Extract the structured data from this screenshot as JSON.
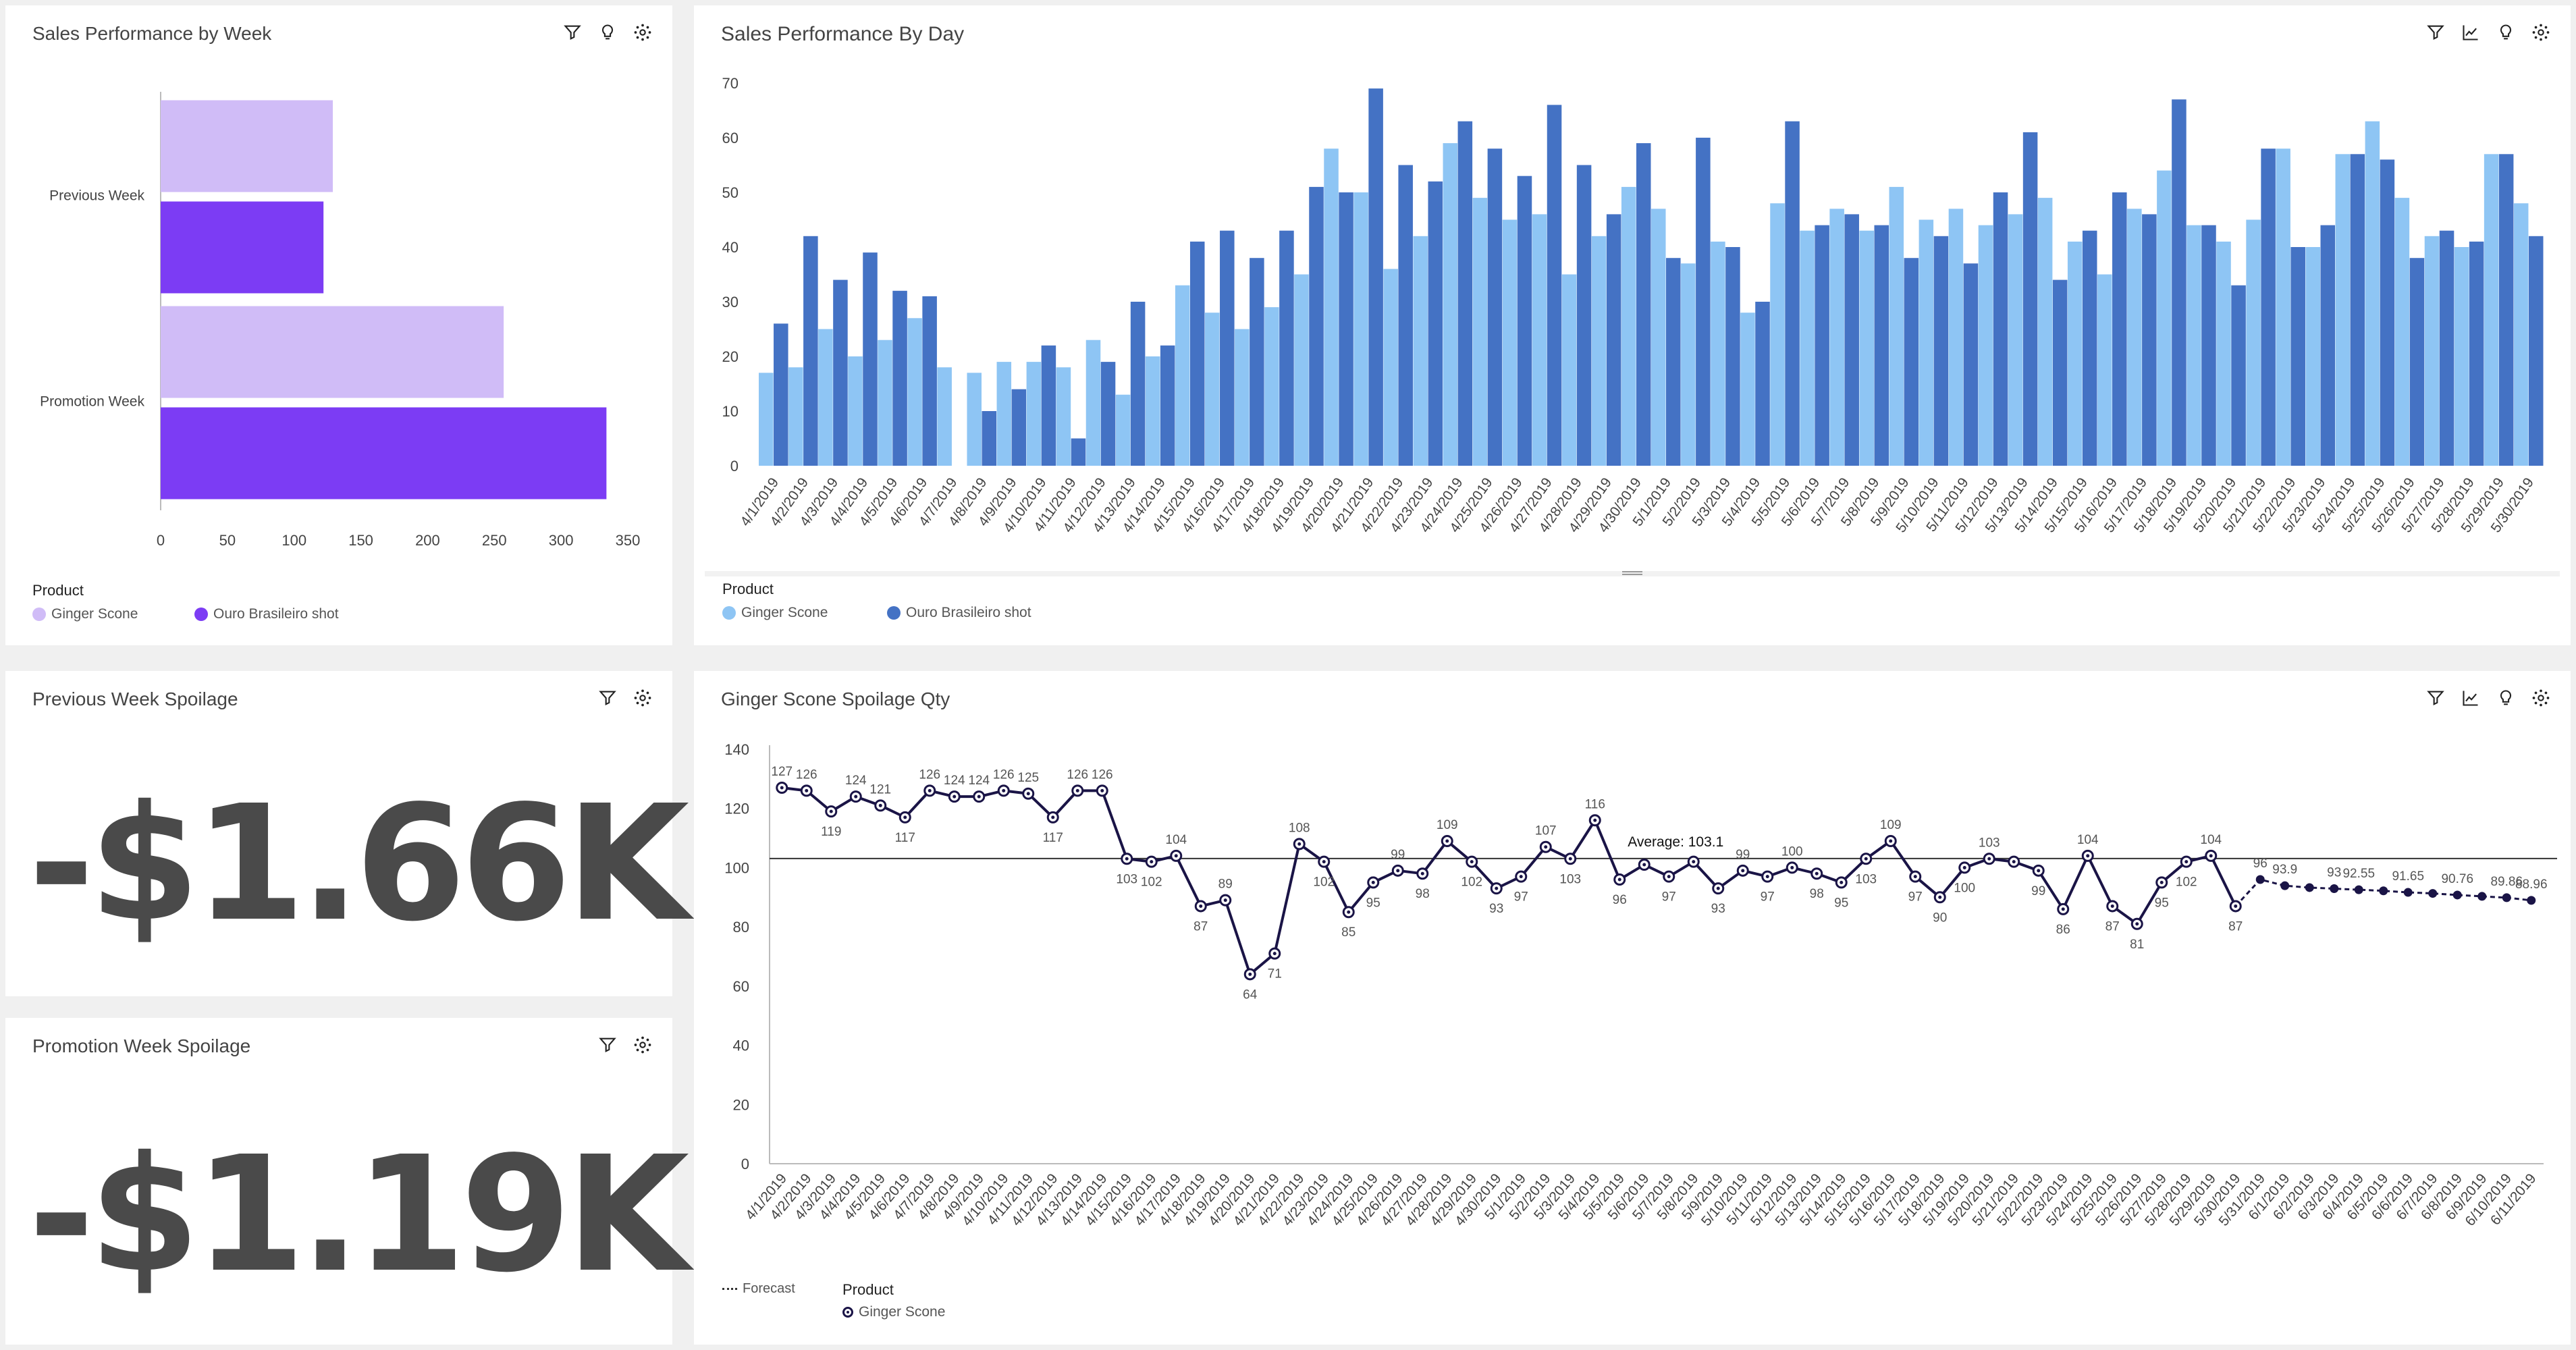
{
  "panels": {
    "week": {
      "title": "Sales Performance by Week",
      "legend_title": "Product",
      "legend": [
        "Ginger Scone",
        "Ouro Brasileiro shot"
      ]
    },
    "day": {
      "title": "Sales Performance By Day",
      "legend_title": "Product",
      "legend": [
        "Ginger Scone",
        "Ouro Brasileiro shot"
      ]
    },
    "prev": {
      "title": "Previous Week Spoilage",
      "value": "-$1.66K"
    },
    "promo": {
      "title": "Promotion Week Spoilage",
      "value": "-$1.19K"
    },
    "spoil": {
      "title": "Ginger Scone Spoilage Qty",
      "forecast_label": "Forecast",
      "legend_title": "Product",
      "legend": [
        "Ginger Scone"
      ]
    }
  },
  "colors": {
    "ginger_bar_week": "#d0bcf7",
    "ouro_bar_week": "#7c3cf4",
    "ginger_bar_day": "#8ec5f4",
    "ouro_bar_day": "#4472c4",
    "line": "#1a1446"
  },
  "icons": [
    "filter-icon",
    "lightbulb-icon",
    "settings-icon",
    "trend-icon"
  ],
  "chart_data": [
    {
      "type": "bar",
      "orientation": "horizontal",
      "title": "Sales Performance by Week",
      "categories": [
        "Previous Week",
        "Promotion Week"
      ],
      "series": [
        {
          "name": "Ginger Scone",
          "values": [
            129,
            257
          ]
        },
        {
          "name": "Ouro Brasileiro shot",
          "values": [
            122,
            334
          ]
        }
      ],
      "xlim": [
        0,
        350
      ],
      "xticks": [
        0,
        50,
        100,
        150,
        200,
        250,
        300,
        350
      ],
      "legend_title": "Product",
      "legend_position": "bottom-left"
    },
    {
      "type": "bar",
      "title": "Sales Performance By Day",
      "x": [
        "4/1/2019",
        "4/2/2019",
        "4/3/2019",
        "4/4/2019",
        "4/5/2019",
        "4/6/2019",
        "4/7/2019",
        "4/8/2019",
        "4/9/2019",
        "4/10/2019",
        "4/11/2019",
        "4/12/2019",
        "4/13/2019",
        "4/14/2019",
        "4/15/2019",
        "4/16/2019",
        "4/17/2019",
        "4/18/2019",
        "4/19/2019",
        "4/20/2019",
        "4/21/2019",
        "4/22/2019",
        "4/23/2019",
        "4/24/2019",
        "4/25/2019",
        "4/26/2019",
        "4/27/2019",
        "4/28/2019",
        "4/29/2019",
        "4/30/2019",
        "5/1/2019",
        "5/2/2019",
        "5/3/2019",
        "5/4/2019",
        "5/5/2019",
        "5/6/2019",
        "5/7/2019",
        "5/8/2019",
        "5/9/2019",
        "5/10/2019",
        "5/11/2019",
        "5/12/2019",
        "5/13/2019",
        "5/14/2019",
        "5/15/2019",
        "5/16/2019",
        "5/17/2019",
        "5/18/2019",
        "5/19/2019",
        "5/20/2019",
        "5/21/2019",
        "5/22/2019",
        "5/23/2019",
        "5/24/2019",
        "5/25/2019",
        "5/26/2019",
        "5/27/2019",
        "5/28/2019",
        "5/29/2019",
        "5/30/2019"
      ],
      "series": [
        {
          "name": "Ginger Scone",
          "values": [
            17,
            18,
            25,
            20,
            23,
            27,
            18,
            17,
            19,
            19,
            18,
            23,
            13,
            20,
            33,
            28,
            25,
            29,
            35,
            58,
            50,
            36,
            42,
            59,
            49,
            45,
            46,
            35,
            42,
            51,
            47,
            37,
            41,
            28,
            48,
            43,
            47,
            43,
            51,
            45,
            47,
            44,
            46,
            49,
            41,
            35,
            47,
            54,
            44,
            41,
            45,
            58,
            40,
            57,
            63,
            49,
            42,
            40,
            57,
            48
          ]
        },
        {
          "name": "Ouro Brasileiro shot",
          "values": [
            26,
            42,
            34,
            39,
            32,
            31,
            0,
            10,
            14,
            22,
            5,
            19,
            30,
            22,
            41,
            43,
            38,
            43,
            51,
            50,
            69,
            55,
            52,
            63,
            58,
            53,
            66,
            55,
            46,
            59,
            38,
            60,
            40,
            30,
            63,
            44,
            46,
            44,
            38,
            42,
            37,
            50,
            61,
            34,
            43,
            50,
            46,
            67,
            44,
            33,
            58,
            40,
            44,
            57,
            56,
            38,
            43,
            41,
            57,
            42
          ]
        }
      ],
      "ylim": [
        0,
        70
      ],
      "yticks": [
        0,
        10,
        20,
        30,
        40,
        50,
        60,
        70
      ],
      "legend_title": "Product",
      "legend_position": "bottom-left"
    },
    {
      "type": "line",
      "title": "Ginger Scone Spoilage Qty",
      "x": [
        "4/1/2019",
        "4/2/2019",
        "4/3/2019",
        "4/4/2019",
        "4/5/2019",
        "4/6/2019",
        "4/7/2019",
        "4/8/2019",
        "4/9/2019",
        "4/10/2019",
        "4/11/2019",
        "4/12/2019",
        "4/13/2019",
        "4/14/2019",
        "4/15/2019",
        "4/16/2019",
        "4/17/2019",
        "4/18/2019",
        "4/19/2019",
        "4/20/2019",
        "4/21/2019",
        "4/22/2019",
        "4/23/2019",
        "4/24/2019",
        "4/25/2019",
        "4/26/2019",
        "4/27/2019",
        "4/28/2019",
        "4/29/2019",
        "4/30/2019",
        "5/1/2019",
        "5/2/2019",
        "5/3/2019",
        "5/4/2019",
        "5/5/2019",
        "5/6/2019",
        "5/7/2019",
        "5/8/2019",
        "5/9/2019",
        "5/10/2019",
        "5/11/2019",
        "5/12/2019",
        "5/13/2019",
        "5/14/2019",
        "5/15/2019",
        "5/16/2019",
        "5/17/2019",
        "5/18/2019",
        "5/19/2019",
        "5/20/2019",
        "5/21/2019",
        "5/22/2019",
        "5/23/2019",
        "5/24/2019",
        "5/25/2019",
        "5/26/2019",
        "5/27/2019",
        "5/28/2019",
        "5/29/2019",
        "5/30/2019",
        "5/31/2019",
        "6/1/2019",
        "6/2/2019",
        "6/3/2019",
        "6/4/2019",
        "6/5/2019",
        "6/6/2019",
        "6/7/2019",
        "6/8/2019",
        "6/9/2019",
        "6/10/2019",
        "6/11/2019"
      ],
      "series": [
        {
          "name": "Ginger Scone",
          "values": [
            127,
            126,
            119,
            124,
            121,
            117,
            126,
            124,
            124,
            126,
            125,
            117,
            126,
            126,
            103,
            102,
            104,
            87,
            89,
            64,
            71,
            108,
            102,
            85,
            95,
            99,
            98,
            109,
            102,
            93,
            97,
            107,
            103,
            116,
            96,
            101,
            97,
            102,
            93,
            99,
            97,
            100,
            98,
            95,
            103,
            109,
            97,
            90,
            100,
            103,
            102,
            99,
            86,
            104,
            87,
            81,
            95,
            102,
            104,
            87,
            96,
            93.9,
            93.27,
            92.91,
            92.55,
            92.18,
            91.65,
            91.3,
            90.76,
            90.31,
            89.86,
            88.96
          ]
        }
      ],
      "forecast_start_index": 60,
      "data_labels": [
        "127",
        "126",
        "119",
        "124",
        "121",
        "117",
        "126",
        "124",
        "124",
        "126",
        "125",
        "117",
        "126",
        "126",
        "103",
        "102",
        "104",
        "87",
        "89",
        "64",
        "71",
        "108",
        "102",
        "85",
        "95",
        "99",
        "98",
        "109",
        "102",
        "93",
        "97",
        "107",
        "103",
        "116",
        "96",
        "",
        "97",
        "",
        "93",
        "99",
        "97",
        "100",
        "98",
        "95",
        "103",
        "109",
        "97",
        "90",
        "100",
        "103",
        "",
        "99",
        "86",
        "104",
        "87",
        "81",
        "95",
        "102",
        "104",
        "87",
        "96",
        "93.9",
        "",
        "93",
        "92.55",
        "",
        "91.65",
        "",
        "90.76",
        "",
        "89.86",
        "88.96"
      ],
      "reference_line": {
        "label": "Average: 103.1",
        "value": 103.1
      },
      "ylim": [
        0,
        140
      ],
      "yticks": [
        0,
        20,
        40,
        60,
        80,
        100,
        120,
        140
      ],
      "legend_title": "Product",
      "forecast_label": "Forecast",
      "legend_position": "bottom-left"
    }
  ]
}
